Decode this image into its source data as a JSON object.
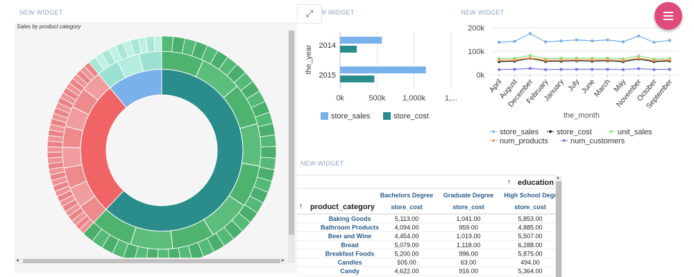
{
  "widgets": {
    "sunburst": {
      "title": "NEW WIDGET",
      "subtitle": "Sales by product category"
    },
    "bar": {
      "title": "NEW WIDGET"
    },
    "line": {
      "title": "NEW WIDGET"
    },
    "table": {
      "title": "NEW WIDGET"
    }
  },
  "icons": {
    "expand": "expand-arrows-icon",
    "menu": "hamburger-menu-icon"
  },
  "colors": {
    "fab": "#e04b7a",
    "teal": "#2a8d8c",
    "green": "#4db36f",
    "red": "#f06466",
    "blue": "#7ab1ea",
    "mint": "#9be1d2"
  },
  "chart_data": [
    {
      "type": "sunburst",
      "title": "Sales by product category",
      "inner_ring": [
        {
          "name": "",
          "share": 0.62,
          "color": "#2a8d8c"
        },
        {
          "name": "",
          "share": 0.27,
          "color": "#f06466"
        },
        {
          "name": "",
          "share": 0.11,
          "color": "#7ab1ea"
        }
      ],
      "outer_ring_colors": [
        "#4db36f",
        "#ec8a8c",
        "#a8e6d6"
      ]
    },
    {
      "type": "bar",
      "orientation": "horizontal",
      "ylabel": "the_year",
      "categories": [
        "2014",
        "2015"
      ],
      "series": [
        {
          "name": "store_sales",
          "color": "#7ab1ea",
          "values": [
            565000,
            1160000
          ]
        },
        {
          "name": "store_cost",
          "color": "#2a8d8c",
          "values": [
            226000,
            463000
          ]
        }
      ],
      "x_ticks": [
        "0k",
        "500k",
        "1,000k",
        "1,..."
      ],
      "xlim": [
        0,
        1500000
      ]
    },
    {
      "type": "line",
      "xlabel": "the_month",
      "categories": [
        "April",
        "August",
        "December",
        "February",
        "January",
        "July",
        "June",
        "March",
        "May",
        "November",
        "October",
        "September"
      ],
      "y_ticks": [
        "0k",
        "100k",
        "200k"
      ],
      "ylim": [
        0,
        200000
      ],
      "series": [
        {
          "name": "store_sales",
          "color": "#7ab1ea",
          "values": [
            138000,
            142000,
            175000,
            140000,
            144000,
            148000,
            144000,
            148000,
            140000,
            165000,
            138000,
            146000
          ]
        },
        {
          "name": "store_cost",
          "color": "#222222",
          "values": [
            56000,
            58000,
            70000,
            57000,
            58000,
            60000,
            58000,
            60000,
            56000,
            67000,
            56000,
            59000
          ]
        },
        {
          "name": "unit_sales",
          "color": "#8ee08a",
          "values": [
            68000,
            70000,
            82000,
            68000,
            70000,
            71000,
            70000,
            71000,
            68000,
            80000,
            67000,
            70000
          ]
        },
        {
          "name": "num_products",
          "color": "#f0a050",
          "values": [
            62000,
            63000,
            72000,
            62000,
            63000,
            64000,
            63000,
            64000,
            61000,
            70000,
            61000,
            63000
          ]
        },
        {
          "name": "num_customers",
          "color": "#7a7ae0",
          "values": [
            22000,
            23000,
            27000,
            22000,
            23000,
            23000,
            23000,
            23000,
            22000,
            26000,
            22000,
            23000
          ]
        }
      ]
    },
    {
      "type": "table",
      "column_dimension": "education",
      "row_dimension": "product_category",
      "columns": [
        "Bachelors Degree",
        "Graduate Degree",
        "High School Degr"
      ],
      "measure": "store_cost",
      "rows": [
        {
          "label": "Baking Goods",
          "values": [
            "5,113.00",
            "1,041.00",
            "5,853.00"
          ]
        },
        {
          "label": "Bathroom Products",
          "values": [
            "4,094.00",
            "959.00",
            "4,885.00"
          ]
        },
        {
          "label": "Beer and Wine",
          "values": [
            "4,454.00",
            "1,019.00",
            "5,507.00"
          ]
        },
        {
          "label": "Bread",
          "values": [
            "5,079.00",
            "1,118.00",
            "6,288.00"
          ]
        },
        {
          "label": "Breakfast Foods",
          "values": [
            "5,200.00",
            "996.00",
            "5,875.00"
          ]
        },
        {
          "label": "Candles",
          "values": [
            "505.00",
            "63.00",
            "494.00"
          ]
        },
        {
          "label": "Candy",
          "values": [
            "4,622.00",
            "916.00",
            "5,364.00"
          ]
        }
      ]
    }
  ]
}
